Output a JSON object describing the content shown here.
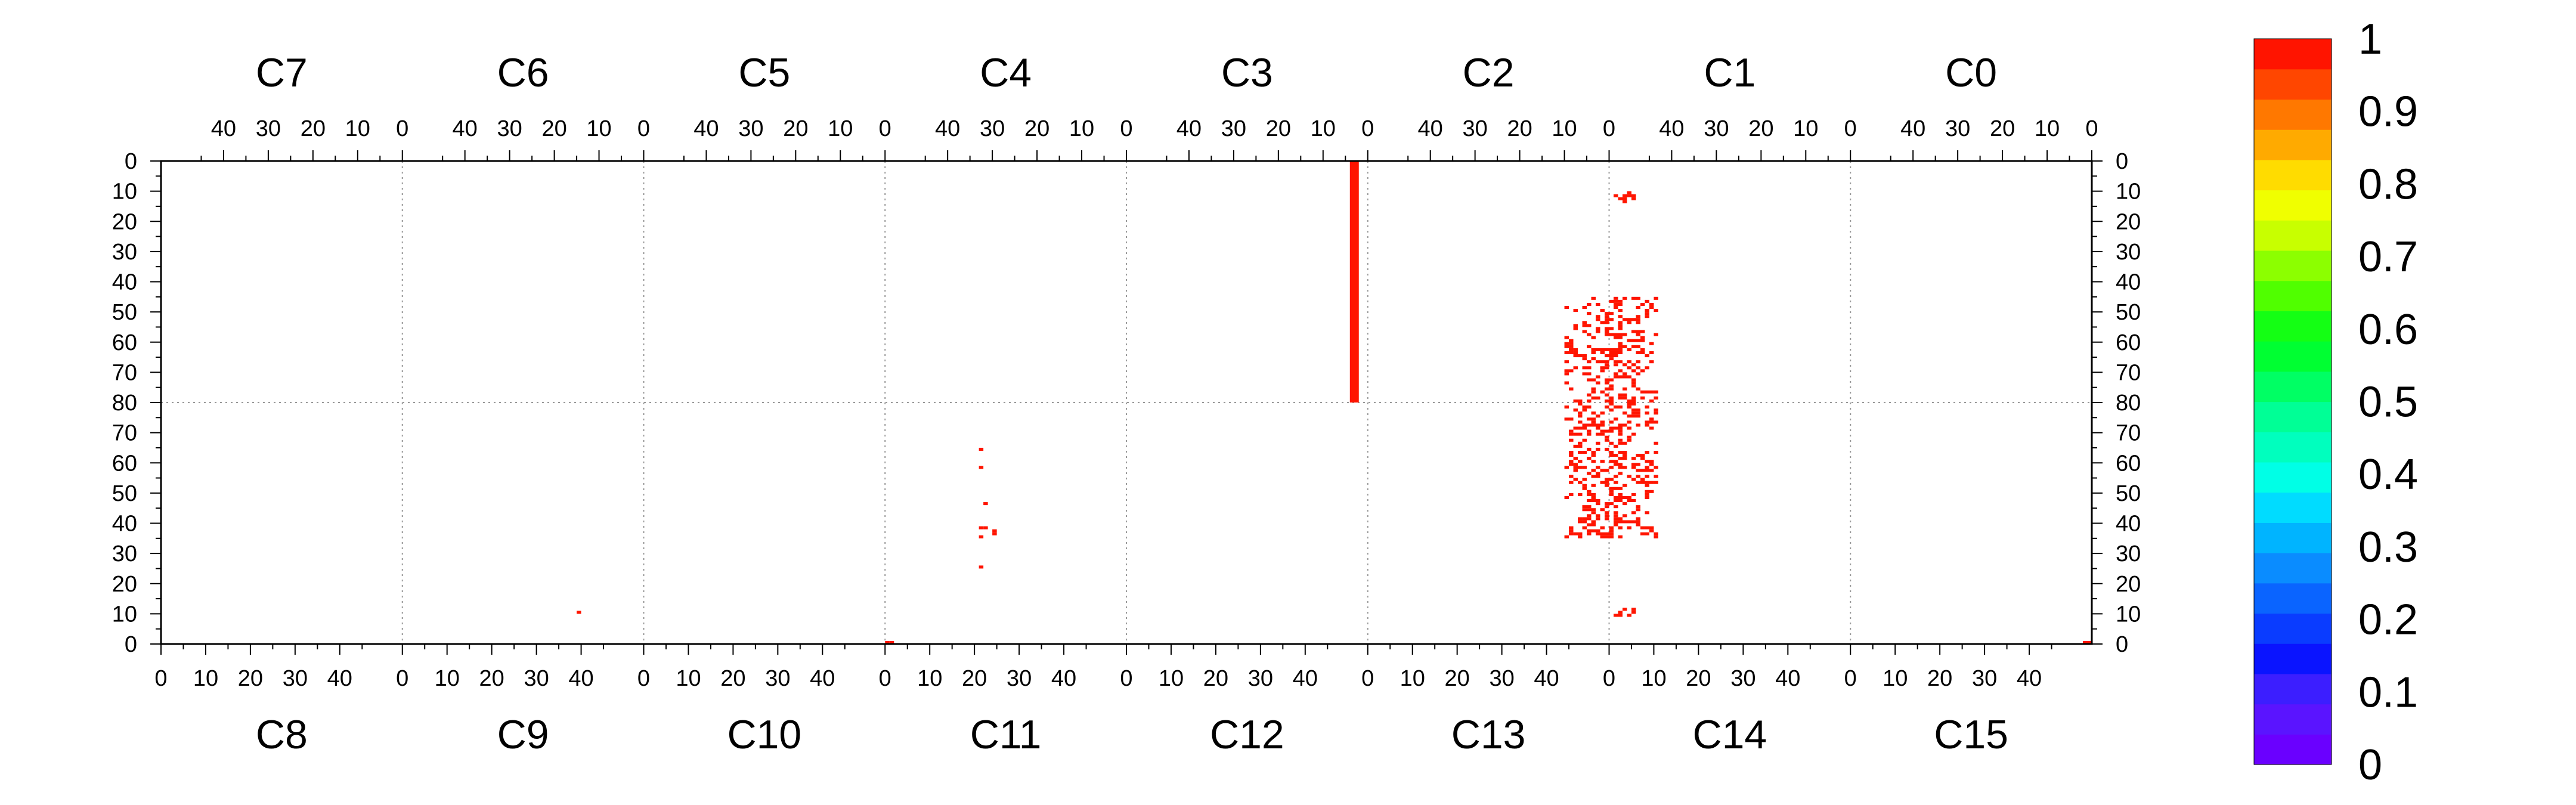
{
  "chart_data": {
    "type": "heatmap",
    "title": "",
    "top_channels": [
      "C7",
      "C6",
      "C5",
      "C4",
      "C3",
      "C2",
      "C1",
      "C0"
    ],
    "bottom_channels": [
      "C8",
      "C9",
      "C10",
      "C11",
      "C12",
      "C13",
      "C14",
      "C15"
    ],
    "top_tick_labels": [
      "40",
      "30",
      "20",
      "10",
      "0"
    ],
    "bottom_tick_labels": [
      "0",
      "10",
      "20",
      "30",
      "40"
    ],
    "y_tick_labels_top_half": [
      "0",
      "10",
      "20",
      "30",
      "40",
      "50",
      "60",
      "70",
      "80"
    ],
    "y_tick_labels_bottom_half": [
      "70",
      "60",
      "50",
      "40",
      "30",
      "20",
      "10",
      "0"
    ],
    "x_per_channel": [
      0,
      54
    ],
    "y_top_half": [
      0,
      80
    ],
    "y_bottom_half": [
      80,
      0
    ],
    "grid": "dotted at channel boundaries and at y=80",
    "colorbar": {
      "ticks": [
        "0",
        "0.1",
        "0.2",
        "0.3",
        "0.4",
        "0.5",
        "0.6",
        "0.7",
        "0.8",
        "0.9",
        "1"
      ],
      "range": [
        0,
        1
      ],
      "colors": [
        "#6a00ff",
        "#5a14ff",
        "#3c1eff",
        "#0a14ff",
        "#0a3cff",
        "#0a64ff",
        "#0a8cff",
        "#00b4ff",
        "#00dcff",
        "#00ffe6",
        "#00ffbe",
        "#00ff96",
        "#00ff64",
        "#00ff32",
        "#14ff14",
        "#50ff00",
        "#8cff00",
        "#c8ff00",
        "#f0ff00",
        "#ffdc00",
        "#ffaa00",
        "#ff7800",
        "#ff4600",
        "#ff1400"
      ]
    },
    "hot_bar": {
      "half": "top",
      "channel": "C3",
      "x": [
        2,
        4
      ],
      "y": [
        0,
        80
      ],
      "value": 1
    },
    "clusters": [
      {
        "half": "top",
        "channel_boundary": "C2|C1",
        "x_center": 0,
        "x_spread": 10,
        "y_range": [
          45,
          80
        ],
        "value": 1,
        "density": 0.42
      },
      {
        "half": "top",
        "channel_boundary": "C2|C1",
        "x_center": 3,
        "x_spread": 2,
        "y_range": [
          10,
          14
        ],
        "value": 1,
        "density": 0.6
      },
      {
        "half": "bottom",
        "channel_boundary": "C13|C14",
        "x_center": 0,
        "x_spread": 10,
        "y_range": [
          35,
          80
        ],
        "value": 1,
        "density": 0.42
      },
      {
        "half": "bottom",
        "channel_boundary": "C13|C14",
        "x_center": 3,
        "x_spread": 2,
        "y_range": [
          9,
          12
        ],
        "value": 1,
        "density": 0.6
      }
    ],
    "points": [
      {
        "half": "bottom",
        "channel": "C11",
        "x": 21,
        "y": 64,
        "value": 1
      },
      {
        "half": "bottom",
        "channel": "C11",
        "x": 21,
        "y": 58,
        "value": 1
      },
      {
        "half": "bottom",
        "channel": "C11",
        "x": 22,
        "y": 46,
        "value": 1
      },
      {
        "half": "bottom",
        "channel": "C11",
        "x": 21,
        "y": 38,
        "value": 1
      },
      {
        "half": "bottom",
        "channel": "C11",
        "x": 22,
        "y": 38,
        "value": 1
      },
      {
        "half": "bottom",
        "channel": "C11",
        "x": 21,
        "y": 35,
        "value": 1
      },
      {
        "half": "bottom",
        "channel": "C11",
        "x": 24,
        "y": 37,
        "value": 1
      },
      {
        "half": "bottom",
        "channel": "C11",
        "x": 24,
        "y": 36,
        "value": 1
      },
      {
        "half": "bottom",
        "channel": "C11",
        "x": 21,
        "y": 25,
        "value": 1
      },
      {
        "half": "bottom",
        "channel": "C9",
        "x": 39,
        "y": 10,
        "value": 1
      },
      {
        "half": "bottom",
        "channel": "C11",
        "x": 0,
        "y": 0,
        "value": 1
      },
      {
        "half": "bottom",
        "channel": "C11",
        "x": 1,
        "y": 0,
        "value": 1
      },
      {
        "half": "bottom",
        "channel": "C15",
        "x": 52,
        "y": 0,
        "value": 1
      },
      {
        "half": "bottom",
        "channel": "C15",
        "x": 53,
        "y": 0,
        "value": 1
      }
    ]
  }
}
